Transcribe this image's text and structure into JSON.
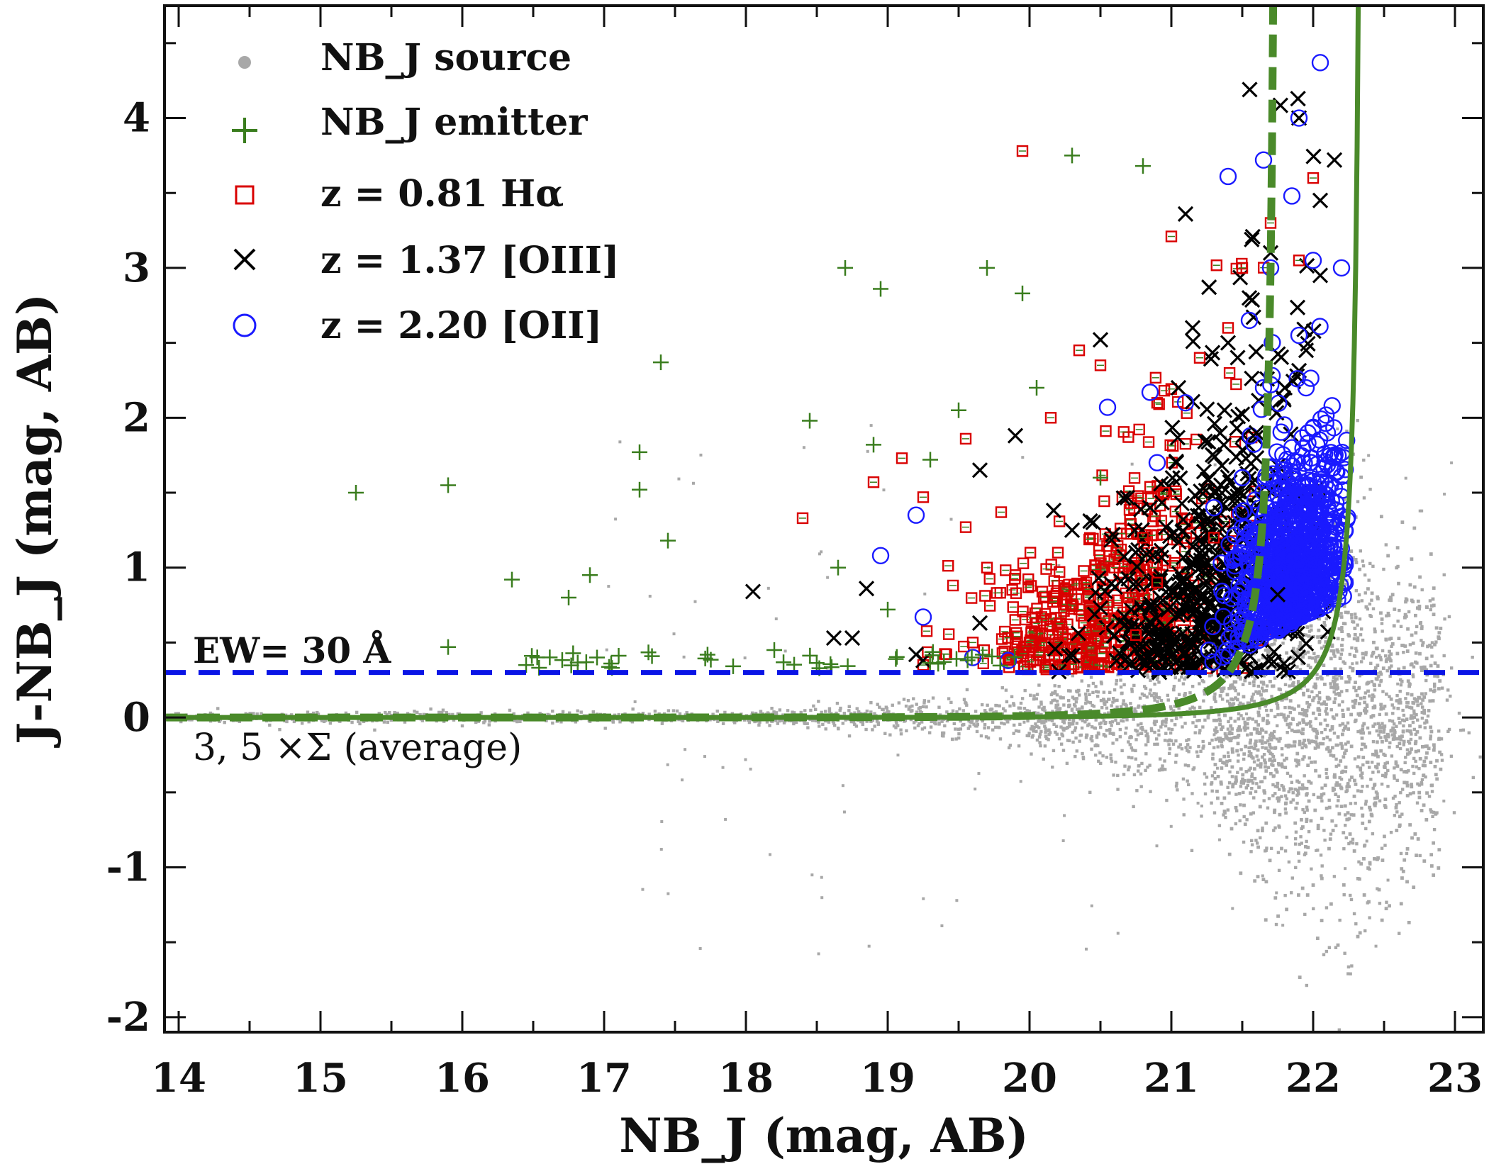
{
  "chart_data": {
    "type": "scatter",
    "title": "",
    "xlabel": "NB_J (mag, AB)",
    "ylabel": "J-NB_J (mag, AB)",
    "xlim": [
      13.9,
      23.2
    ],
    "ylim": [
      -2.1,
      4.75
    ],
    "x_ticks": [
      "14",
      "15",
      "16",
      "17",
      "18",
      "19",
      "20",
      "21",
      "22",
      "23"
    ],
    "y_ticks": [
      "4",
      "3",
      "2",
      "1",
      "0",
      "-1",
      "-2"
    ],
    "x_tick_values": [
      14,
      15,
      16,
      17,
      18,
      19,
      20,
      21,
      22,
      23
    ],
    "y_tick_values": [
      4,
      3,
      2,
      1,
      0,
      -1,
      -2
    ],
    "legend": {
      "placement": "top-left",
      "entries": [
        {
          "key": "source",
          "text": "NB_J source",
          "marker": "dot",
          "color": "#a8a8a8"
        },
        {
          "key": "emitter",
          "text": "NB_J emitter",
          "marker": "plus",
          "color": "#3a7d1e"
        },
        {
          "key": "halpha",
          "text": "z = 0.81 Hα",
          "marker": "square",
          "color": "#d90000"
        },
        {
          "key": "oiii",
          "text": "z = 1.37 [OIII]",
          "marker": "x",
          "color": "#000000"
        },
        {
          "key": "oii",
          "text": "z = 2.20 [OII]",
          "marker": "circle",
          "color": "#1a1aff"
        }
      ]
    },
    "annotations": {
      "ew_label": "EW= 30 Å",
      "sigma_label": "3, 5 ×Σ (average)"
    },
    "ew_cut": 0.3,
    "sigma_curves": [
      {
        "name": "3 sigma",
        "style": "solid",
        "color": "#4a8a2a",
        "divergence_mag": 22.35,
        "x_start": 13.9
      },
      {
        "name": "5 sigma",
        "style": "dashed",
        "color": "#4a8a2a",
        "divergence_mag": 21.75,
        "x_start": 13.9
      }
    ],
    "colors": {
      "source": "#a8a8a8",
      "emitter": "#3a7d1e",
      "halpha": "#d90000",
      "oiii": "#000000",
      "oii": "#1a1aff",
      "ew_line": "#0a14e6"
    },
    "series": [
      {
        "name": "NB_J source",
        "marker": "dot",
        "description": "dense cloud of all detected sources; scatter widens toward faint magnitudes",
        "points": [
          [
            15.0,
            0.02
          ],
          [
            16.0,
            -0.01
          ],
          [
            17.0,
            0.03
          ],
          [
            18.0,
            -0.04
          ],
          [
            19.0,
            0.05
          ],
          [
            19.5,
            -0.3
          ],
          [
            20.0,
            0.6
          ],
          [
            20.5,
            -0.6
          ],
          [
            21.0,
            1.0
          ],
          [
            21.0,
            -0.9
          ],
          [
            21.5,
            1.4
          ],
          [
            22.0,
            1.8
          ],
          [
            22.0,
            -1.1
          ],
          [
            22.5,
            1.5
          ],
          [
            22.5,
            -1.2
          ],
          [
            23.0,
            0.4
          ],
          [
            23.0,
            -0.9
          ]
        ]
      },
      {
        "name": "NB_J emitter",
        "marker": "plus",
        "points": [
          [
            15.25,
            1.5
          ],
          [
            15.9,
            1.55
          ],
          [
            15.9,
            0.47
          ],
          [
            16.35,
            0.92
          ],
          [
            16.75,
            0.8
          ],
          [
            16.9,
            0.95
          ],
          [
            17.25,
            1.77
          ],
          [
            17.25,
            1.52
          ],
          [
            17.4,
            2.37
          ],
          [
            17.45,
            1.18
          ],
          [
            18.45,
            1.98
          ],
          [
            18.7,
            3.0
          ],
          [
            18.95,
            2.86
          ],
          [
            19.3,
            1.72
          ],
          [
            19.5,
            2.05
          ],
          [
            19.7,
            3.0
          ],
          [
            19.95,
            2.83
          ],
          [
            20.05,
            2.2
          ],
          [
            20.3,
            3.75
          ],
          [
            20.8,
            3.68
          ],
          [
            20.5,
            1.6
          ],
          [
            19.0,
            0.72
          ],
          [
            18.65,
            1.0
          ],
          [
            18.2,
            0.45
          ],
          [
            18.9,
            1.82
          ],
          [
            16.45,
            0.35
          ],
          [
            17.05,
            0.36
          ],
          [
            16.95,
            0.4
          ]
        ]
      },
      {
        "name": "z = 0.81 Hα",
        "marker": "square",
        "points": [
          [
            18.4,
            1.33
          ],
          [
            18.9,
            1.57
          ],
          [
            19.1,
            1.73
          ],
          [
            19.25,
            1.47
          ],
          [
            19.55,
            1.27
          ],
          [
            19.55,
            1.86
          ],
          [
            19.8,
            1.37
          ],
          [
            19.7,
            1.0
          ],
          [
            19.9,
            0.95
          ],
          [
            19.95,
            3.78
          ],
          [
            20.1,
            0.8
          ],
          [
            20.2,
            1.1
          ],
          [
            20.3,
            0.75
          ],
          [
            20.4,
            0.9
          ],
          [
            20.5,
            0.62
          ],
          [
            20.6,
            1.0
          ],
          [
            20.7,
            0.8
          ],
          [
            20.75,
            0.55
          ],
          [
            20.8,
            1.2
          ],
          [
            20.9,
            0.9
          ],
          [
            20.95,
            1.5
          ],
          [
            21.0,
            3.21
          ],
          [
            20.5,
            2.35
          ],
          [
            20.9,
            2.1
          ],
          [
            21.2,
            2.4
          ],
          [
            21.5,
            3.0
          ],
          [
            21.7,
            3.3
          ],
          [
            21.9,
            3.05
          ],
          [
            22.0,
            3.6
          ],
          [
            21.3,
            1.2
          ],
          [
            21.4,
            2.6
          ],
          [
            20.0,
            0.5
          ],
          [
            19.6,
            0.5
          ],
          [
            19.25,
            0.35
          ],
          [
            20.35,
            2.45
          ],
          [
            20.15,
            2.0
          ]
        ]
      },
      {
        "name": "z = 1.37 [OIII]",
        "marker": "x",
        "points": [
          [
            18.05,
            0.84
          ],
          [
            18.62,
            0.53
          ],
          [
            18.75,
            0.53
          ],
          [
            18.85,
            0.86
          ],
          [
            19.25,
            0.38
          ],
          [
            19.65,
            1.65
          ],
          [
            19.9,
            1.88
          ],
          [
            20.5,
            2.52
          ],
          [
            20.3,
            1.25
          ],
          [
            20.5,
            0.73
          ],
          [
            20.85,
            1.4
          ],
          [
            21.05,
            2.2
          ],
          [
            21.1,
            3.36
          ],
          [
            21.4,
            2.5
          ],
          [
            21.55,
            2.8
          ],
          [
            21.7,
            3.1
          ],
          [
            21.9,
            4.0
          ],
          [
            22.15,
            3.72
          ],
          [
            22.05,
            3.45
          ],
          [
            21.95,
            2.45
          ],
          [
            21.6,
            1.9
          ],
          [
            21.35,
            1.55
          ],
          [
            21.2,
            1.1
          ],
          [
            21.75,
            0.82
          ],
          [
            21.8,
            2.2
          ],
          [
            22.05,
            2.95
          ],
          [
            21.15,
            2.6
          ],
          [
            20.75,
            1.1
          ],
          [
            19.65,
            0.63
          ],
          [
            19.2,
            0.42
          ]
        ]
      },
      {
        "name": "z = 2.20 [OII]",
        "marker": "circle",
        "points": [
          [
            18.95,
            1.08
          ],
          [
            19.2,
            1.35
          ],
          [
            19.25,
            0.67
          ],
          [
            19.6,
            0.4
          ],
          [
            19.85,
            0.38
          ],
          [
            20.55,
            2.07
          ],
          [
            20.85,
            2.17
          ],
          [
            20.9,
            1.7
          ],
          [
            21.1,
            2.1
          ],
          [
            21.4,
            3.61
          ],
          [
            21.65,
            3.72
          ],
          [
            21.85,
            3.48
          ],
          [
            21.9,
            4.0
          ],
          [
            22.05,
            4.37
          ],
          [
            22.2,
            3.0
          ],
          [
            22.0,
            3.05
          ],
          [
            21.55,
            2.65
          ],
          [
            21.7,
            3.0
          ],
          [
            21.3,
            1.4
          ],
          [
            21.85,
            1.8
          ],
          [
            22.0,
            1.5
          ],
          [
            21.95,
            2.2
          ],
          [
            21.8,
            1.1
          ],
          [
            21.6,
            0.6
          ],
          [
            22.0,
            0.9
          ],
          [
            21.5,
            1.6
          ],
          [
            21.75,
            1.3
          ],
          [
            21.65,
            2.2
          ],
          [
            21.9,
            2.55
          ],
          [
            22.1,
            1.9
          ]
        ]
      }
    ]
  }
}
